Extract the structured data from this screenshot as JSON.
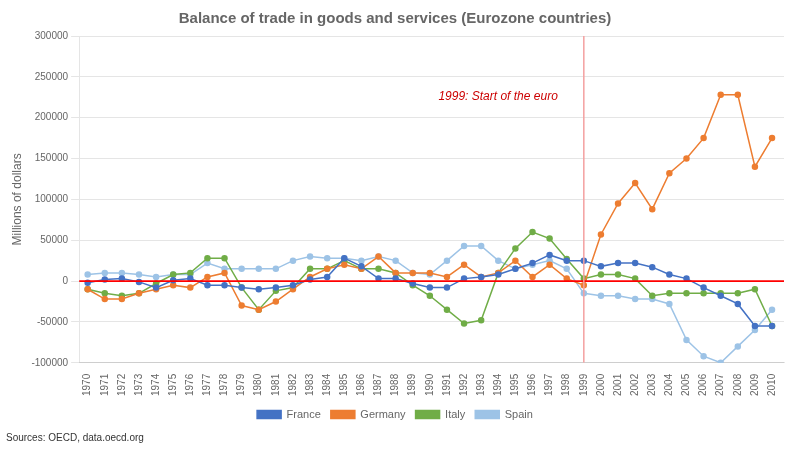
{
  "chart_data": {
    "type": "line",
    "title": "Balance of trade in goods and services (Eurozone countries)",
    "y_label": "Millions of dollars",
    "source": "Sources: OECD, data.oecd.org",
    "annotations": [
      {
        "text": "1999: Start of the euro",
        "x": 1990.5,
        "y": 218000,
        "color": "#cc0000"
      }
    ],
    "reference_lines": [
      {
        "axis": "y",
        "value": 0,
        "color": "#ff0000"
      },
      {
        "axis": "x",
        "value": 1999,
        "color": "#f4a0a0"
      }
    ],
    "x": [
      1970,
      1971,
      1972,
      1973,
      1974,
      1975,
      1976,
      1977,
      1978,
      1979,
      1980,
      1981,
      1982,
      1983,
      1984,
      1985,
      1986,
      1987,
      1988,
      1989,
      1990,
      1991,
      1992,
      1993,
      1994,
      1995,
      1996,
      1997,
      1998,
      1999,
      2000,
      2001,
      2002,
      2003,
      2004,
      2005,
      2006,
      2007,
      2008,
      2009,
      2010
    ],
    "series": [
      {
        "name": "France",
        "color": "#4472c4",
        "marker": "circle",
        "values": [
          -2000,
          2000,
          3000,
          -1000,
          -8000,
          1000,
          3000,
          -5000,
          -5000,
          -8000,
          -10000,
          -8000,
          -5000,
          2000,
          5000,
          28000,
          18000,
          3000,
          3000,
          -3000,
          -8000,
          -8000,
          3000,
          5000,
          8000,
          15000,
          22000,
          32000,
          25000,
          25000,
          18000,
          22000,
          22000,
          17000,
          8000,
          3000,
          -8000,
          -18000,
          -28000,
          -55000,
          -55000
        ]
      },
      {
        "name": "Germany",
        "color": "#ed7d31",
        "marker": "circle",
        "values": [
          -10000,
          -22000,
          -22000,
          -15000,
          -10000,
          -5000,
          -8000,
          5000,
          10000,
          -30000,
          -35000,
          -25000,
          -10000,
          5000,
          15000,
          20000,
          15000,
          30000,
          10000,
          10000,
          10000,
          5000,
          20000,
          5000,
          10000,
          25000,
          5000,
          20000,
          3000,
          -5000,
          57000,
          95000,
          120000,
          88000,
          132000,
          150000,
          175000,
          228000,
          228000,
          140000,
          175000
        ]
      },
      {
        "name": "Italy",
        "color": "#70ad47",
        "marker": "circle",
        "values": [
          -10000,
          -15000,
          -18000,
          -15000,
          -3000,
          8000,
          10000,
          28000,
          28000,
          -8000,
          -35000,
          -12000,
          -8000,
          15000,
          15000,
          25000,
          15000,
          15000,
          10000,
          -5000,
          -18000,
          -35000,
          -52000,
          -48000,
          10000,
          40000,
          60000,
          52000,
          27000,
          3000,
          8000,
          8000,
          3000,
          -18000,
          -15000,
          -15000,
          -15000,
          -15000,
          -15000,
          -10000,
          -55000
        ]
      },
      {
        "name": "Spain",
        "color": "#9dc3e6",
        "marker": "circle",
        "values": [
          8000,
          10000,
          10000,
          8000,
          5000,
          8000,
          8000,
          22000,
          15000,
          15000,
          15000,
          15000,
          25000,
          30000,
          28000,
          28000,
          25000,
          30000,
          25000,
          10000,
          8000,
          25000,
          43000,
          43000,
          25000,
          15000,
          20000,
          25000,
          15000,
          -15000,
          -18000,
          -18000,
          -22000,
          -22000,
          -28000,
          -72000,
          -92000,
          -100000,
          -80000,
          -60000,
          -35000
        ]
      }
    ],
    "xlim": [
      1969.5,
      2010.7
    ],
    "xticks": [
      1970,
      1971,
      1972,
      1973,
      1974,
      1975,
      1976,
      1977,
      1978,
      1979,
      1980,
      1981,
      1982,
      1983,
      1984,
      1985,
      1986,
      1987,
      1988,
      1989,
      1990,
      1991,
      1992,
      1993,
      1994,
      1995,
      1996,
      1997,
      1998,
      1999,
      2000,
      2001,
      2002,
      2003,
      2004,
      2005,
      2006,
      2007,
      2008,
      2009,
      2010
    ],
    "ylim": [
      -100000,
      300000
    ],
    "yticks": [
      -100000,
      -50000,
      0,
      50000,
      100000,
      150000,
      200000,
      250000,
      300000
    ],
    "grid": "y",
    "legend": "bottom"
  }
}
